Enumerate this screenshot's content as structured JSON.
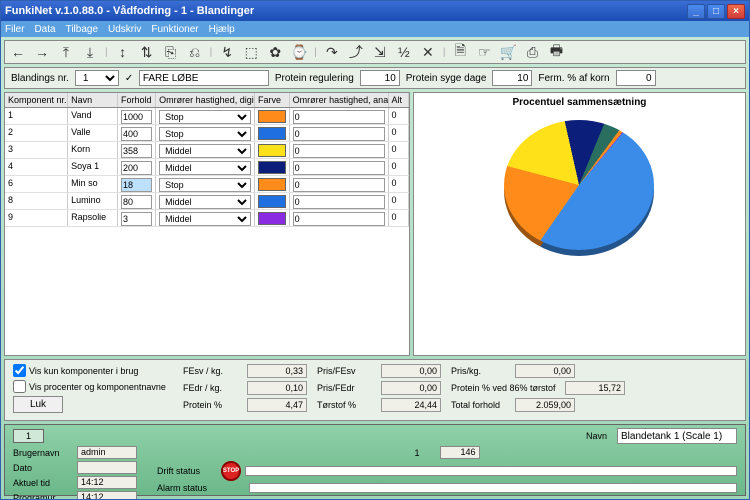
{
  "window": {
    "title": "FunkiNet v.1.0.88.0 - Vådfodring - 1 - Blandinger"
  },
  "menu": [
    "Filer",
    "Data",
    "Tilbage",
    "Udskriv",
    "Funktioner",
    "Hjælp"
  ],
  "toolbar_icons": [
    "←",
    "→",
    "⤒",
    "⤓",
    "|",
    "↕",
    "⇅",
    "⎘",
    "⎌",
    "|",
    "↯",
    "⬚",
    "✿",
    "⌚",
    "|",
    "↷",
    "⤴",
    "⇲",
    "½",
    "✕",
    "|",
    "🗎",
    "☞",
    "🛒",
    "⎙",
    "🖶"
  ],
  "fields": {
    "bland_nr_label": "Blandings nr.",
    "bland_nr_value": "1",
    "bland_name": "FARE LØBE",
    "protein_reg_label": "Protein regulering",
    "protein_reg_value": "10",
    "protein_dage_label": "Protein syge dage",
    "protein_dage_value": "10",
    "ferm_label": "Ferm. % af korn",
    "ferm_value": "0"
  },
  "grid": {
    "columns": [
      "Komponent nr.",
      "Navn",
      "Forhold",
      "Omrører hastighed, digital",
      "Farve",
      "Omrører hastighed, analog",
      "Alt"
    ],
    "rows": [
      {
        "nr": "1",
        "navn": "Vand",
        "forhold": "1000",
        "dd": "Stop",
        "farve": "#ff8c1a",
        "an": "0",
        "alt": "0",
        "sel": false
      },
      {
        "nr": "2",
        "navn": "Valle",
        "forhold": "400",
        "dd": "Stop",
        "farve": "#1f6fe0",
        "an": "0",
        "alt": "0",
        "sel": false
      },
      {
        "nr": "3",
        "navn": "Korn",
        "forhold": "358",
        "dd": "Middel",
        "farve": "#ffe11a",
        "an": "0",
        "alt": "0",
        "sel": false
      },
      {
        "nr": "4",
        "navn": "Soya 1",
        "forhold": "200",
        "dd": "Middel",
        "farve": "#0a1e7a",
        "an": "0",
        "alt": "0",
        "sel": false
      },
      {
        "nr": "6",
        "navn": "Min so",
        "forhold": "18",
        "dd": "Stop",
        "farve": "#ff8c1a",
        "an": "0",
        "alt": "0",
        "sel": true
      },
      {
        "nr": "8",
        "navn": "Lumino",
        "forhold": "80",
        "dd": "Middel",
        "farve": "#1f6fe0",
        "an": "0",
        "alt": "0",
        "sel": false
      },
      {
        "nr": "9",
        "navn": "Rapsolie",
        "forhold": "3",
        "dd": "Middel",
        "farve": "#8a2be2",
        "an": "0",
        "alt": "0",
        "sel": false
      }
    ]
  },
  "chart": {
    "title": "Procentuel sammensætning",
    "type": "pie",
    "slices": [
      {
        "label": "Vand",
        "value": 1000,
        "color": "#3a8ce8"
      },
      {
        "label": "Valle",
        "value": 400,
        "color": "#ff8c1a"
      },
      {
        "label": "Korn",
        "value": 358,
        "color": "#ffe11a"
      },
      {
        "label": "Soya 1",
        "value": 200,
        "color": "#0a1e7a"
      },
      {
        "label": "Lumino",
        "value": 80,
        "color": "#2a6e5f"
      },
      {
        "label": "Min so",
        "value": 18,
        "color": "#ff8c1a"
      },
      {
        "label": "Rapsolie",
        "value": 3,
        "color": "#8a2be2"
      }
    ],
    "background": "#ffffff"
  },
  "calc": {
    "chk1": "Vis kun komponenter i brug",
    "chk2": "Vis procenter og komponentnavne",
    "luk": "Luk",
    "fesv_l": "FEsv / kg.",
    "fesv_v": "0,33",
    "fedr_l": "FEdr / kg.",
    "fedr_v": "0,10",
    "prot_l": "Protein %",
    "prot_v": "4,47",
    "pfesv_l": "Pris/FEsv",
    "pfesv_v": "0,00",
    "pfedr_l": "Pris/FEdr",
    "pfedr_v": "0,00",
    "torst_l": "Tørstof %",
    "torst_v": "24,44",
    "priskg_l": "Pris/kg.",
    "priskg_v": "0,00",
    "prot86_l": "Protein % ved 86% tørstof",
    "prot86_v": "15,72",
    "total_l": "Total forhold",
    "total_v": "2.059,00"
  },
  "status": {
    "tank_num": "1",
    "navn_label": "Navn",
    "navn_value": "Blandetank 1 (Scale 1)",
    "bruger_l": "Brugernavn",
    "bruger_v": "admin",
    "dato_l": "Dato",
    "dato_v": "",
    "tid_l": "Aktuel tid",
    "tid_v": "14:12",
    "prog_l": "Programur",
    "prog_v": "14:12",
    "num1": "1",
    "num2": "146",
    "drift_l": "Drift status",
    "alarm_l": "Alarm status"
  }
}
